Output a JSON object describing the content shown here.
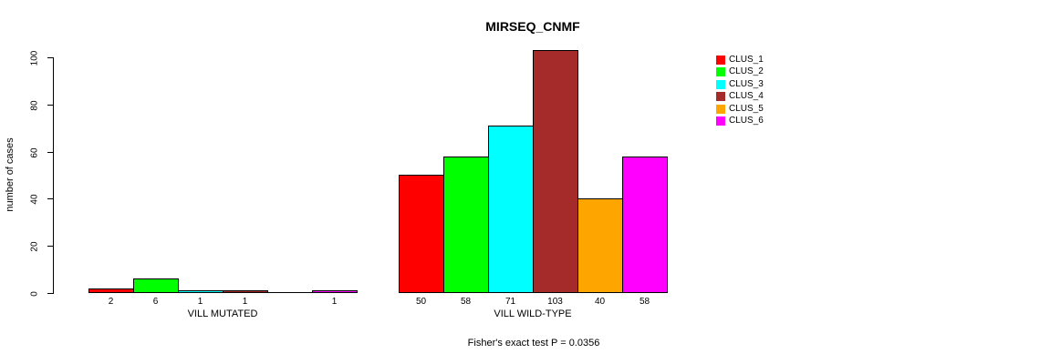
{
  "chart_data": {
    "type": "bar",
    "title": "MIRSEQ_CNMF",
    "ylabel": "number of cases",
    "subtitle": "Fisher's exact test P = 0.0356",
    "ylim": [
      0,
      100
    ],
    "yticks": [
      0,
      20,
      40,
      60,
      80,
      100
    ],
    "grid": false,
    "legend_position": "right",
    "series": [
      {
        "name": "CLUS_1",
        "color": "#FF0000"
      },
      {
        "name": "CLUS_2",
        "color": "#00FF00"
      },
      {
        "name": "CLUS_3",
        "color": "#00FFFF"
      },
      {
        "name": "CLUS_4",
        "color": "#A52A2A"
      },
      {
        "name": "CLUS_5",
        "color": "#FFA500"
      },
      {
        "name": "CLUS_6",
        "color": "#FF00FF"
      }
    ],
    "groups": [
      {
        "label": "VILL MUTATED",
        "values": [
          2,
          6,
          1,
          1,
          0,
          1
        ]
      },
      {
        "label": "VILL WILD-TYPE",
        "values": [
          50,
          58,
          71,
          103,
          40,
          58
        ]
      }
    ],
    "bar_label_rule": "value shown under each bar except zero-height bars"
  }
}
